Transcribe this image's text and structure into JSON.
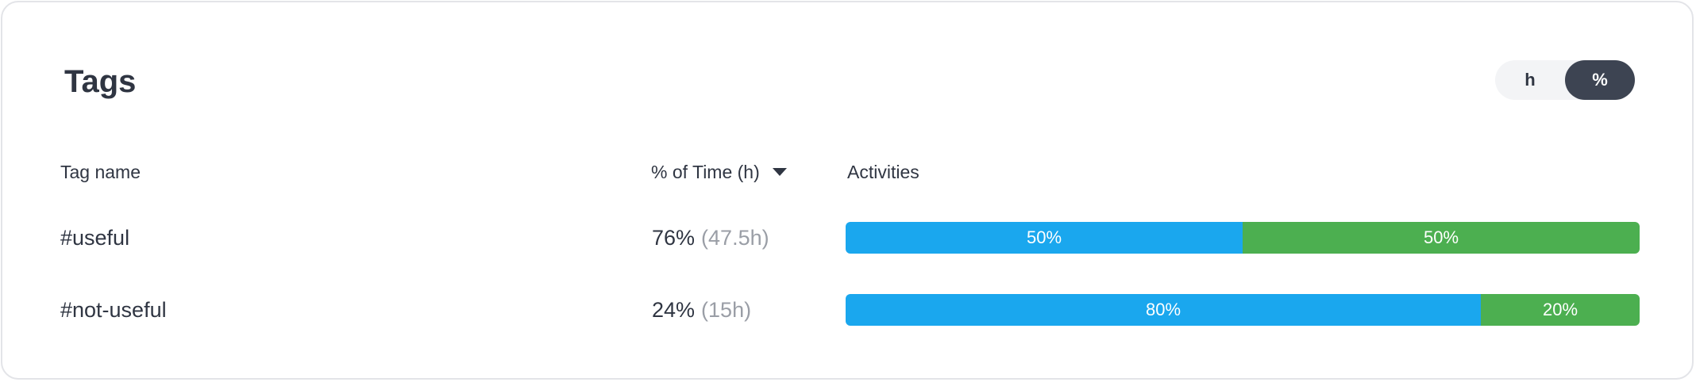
{
  "card": {
    "title": "Tags",
    "unit_toggle": {
      "options": [
        {
          "label": "h",
          "selected": false
        },
        {
          "label": "%",
          "selected": true
        }
      ]
    }
  },
  "table": {
    "headers": {
      "tag_name": "Tag name",
      "time": "% of Time (h)",
      "activities": "Activities"
    },
    "sort": {
      "column": "time",
      "direction": "descending"
    },
    "rows": [
      {
        "tag": "#useful",
        "percent": "76%",
        "hours": "(47.5h)",
        "activities": [
          {
            "label": "50%",
            "value": 50,
            "color": "#1aa7ee"
          },
          {
            "label": "50%",
            "value": 50,
            "color": "#4caf50"
          }
        ]
      },
      {
        "tag": "#not-useful",
        "percent": "24%",
        "hours": "(15h)",
        "activities": [
          {
            "label": "80%",
            "value": 80,
            "color": "#1aa7ee"
          },
          {
            "label": "20%",
            "value": 20,
            "color": "#4caf50"
          }
        ]
      }
    ]
  }
}
